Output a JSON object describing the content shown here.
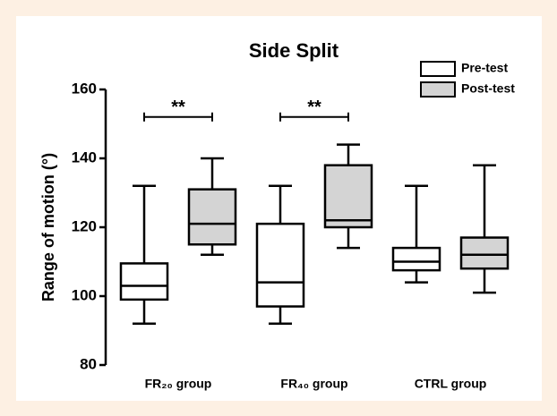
{
  "chart_data": {
    "type": "box",
    "title": "Side Split",
    "y_label": "Range of motion (°)",
    "categories": [
      "FR₂₀ group",
      "FR₄₀ group",
      "CTRL group"
    ],
    "series": [
      {
        "name": "Pre-test",
        "color": "#ffffff",
        "values": [
          {
            "min": 92,
            "q1": 99,
            "median": 103,
            "q3": 109.5,
            "max": 132
          },
          {
            "min": 92,
            "q1": 97,
            "median": 104,
            "q3": 121,
            "max": 132
          },
          {
            "min": 104,
            "q1": 107.5,
            "median": 110,
            "q3": 114,
            "max": 132
          }
        ]
      },
      {
        "name": "Post-test",
        "color": "#d4d4d4",
        "values": [
          {
            "min": 112,
            "q1": 115,
            "median": 121,
            "q3": 131,
            "max": 140
          },
          {
            "min": 114,
            "q1": 120,
            "median": 122,
            "q3": 138,
            "max": 144
          },
          {
            "min": 101,
            "q1": 108,
            "median": 112,
            "q3": 117,
            "max": 138
          }
        ]
      }
    ],
    "annotations": [
      {
        "text": "**",
        "y": 152
      },
      {
        "text": "**",
        "y": 152
      }
    ],
    "ylim": [
      80,
      160
    ],
    "yticks": [
      80,
      100,
      120,
      140,
      160
    ],
    "legend": "upper right"
  }
}
